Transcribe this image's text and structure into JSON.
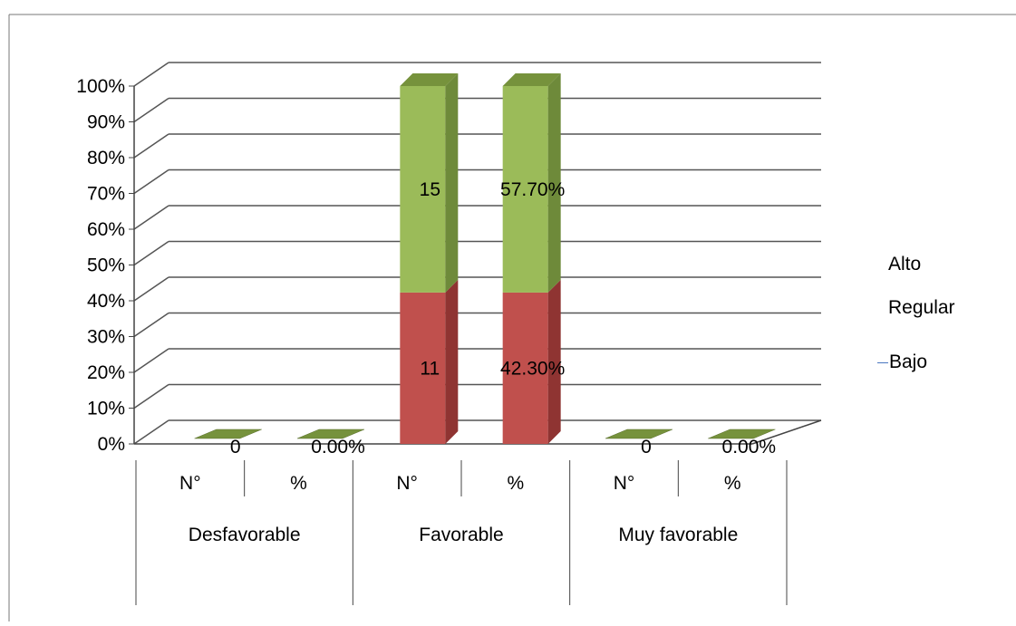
{
  "chart_data": {
    "type": "bar",
    "stacked": "percent",
    "categories": [
      "N°",
      "%",
      "N°",
      "%",
      "N°",
      "%"
    ],
    "groups": [
      "Desfavorable",
      "Favorable",
      "Muy favorable"
    ],
    "y_ticks": [
      "0%",
      "10%",
      "20%",
      "30%",
      "40%",
      "50%",
      "60%",
      "70%",
      "80%",
      "90%",
      "100%"
    ],
    "ylim": [
      0,
      100
    ],
    "series": [
      {
        "name": "Bajo",
        "values": [
          0,
          0,
          11,
          42.3,
          0,
          0
        ],
        "labels": [
          "0",
          "0.00%",
          "11",
          "42.30%",
          "0",
          "0.00%"
        ],
        "color": "#c0504d"
      },
      {
        "name": "Regular",
        "values": [
          0,
          0,
          0,
          0,
          0,
          0
        ],
        "labels": [
          "",
          "",
          "",
          "",
          "",
          ""
        ],
        "color": "#4f81bd"
      },
      {
        "name": "Alto",
        "values": [
          0,
          0,
          15,
          57.7,
          0,
          0
        ],
        "labels": [
          "",
          "",
          "15",
          "57.70%",
          "",
          ""
        ],
        "color": "#9bbb59"
      }
    ],
    "legend": [
      "Alto",
      "Regular",
      "Bajo"
    ],
    "legend_position": "right",
    "grid": true
  },
  "colors": {
    "bajo_front": "#c0504d",
    "bajo_side": "#8f3432",
    "alto_front": "#9bbb59",
    "alto_side": "#6e8a3a",
    "alto_top": "#76923c",
    "zero_marker": "#76923c",
    "grid": "#555555",
    "axis": "#444444"
  }
}
